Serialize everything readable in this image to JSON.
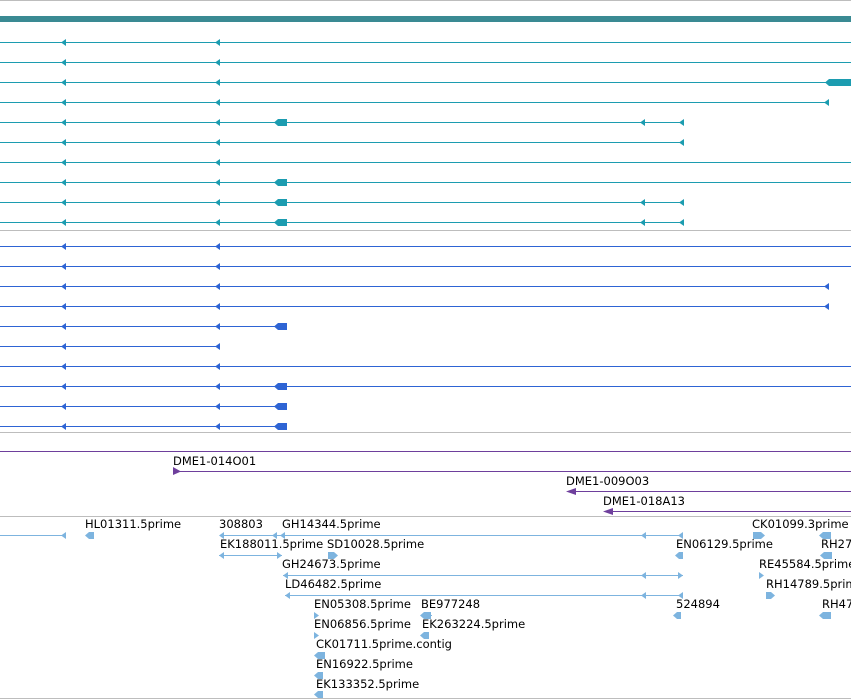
{
  "colors": {
    "gene_bar": "#3a8a93",
    "transcripts_a": "#1c9cb0",
    "transcripts_b": "#2e64d4",
    "purple": "#6e3f9c",
    "est": "#7db4df",
    "divider": "#bdbdbd",
    "label": "#000000"
  },
  "purple_features": [
    {
      "name": "DME1-014O01"
    },
    {
      "name": "DME1-009O03"
    },
    {
      "name": "DME1-018A13"
    }
  ],
  "est_labels": {
    "hl01311": "HL01311.5prime",
    "n308803": "308803",
    "gh14344": "GH14344.5prime",
    "ck01099": "CK01099.3prime",
    "ek188011": "EK188011.5prime",
    "sd10028": "SD10028.5prime",
    "en06129": "EN06129.5prime",
    "rh27": "RH27",
    "gh24673": "GH24673.5prime",
    "re45584": "RE45584.5prime",
    "ld46482": "LD46482.5prime",
    "rh14789": "RH14789.5prim",
    "en05308": "EN05308.5prime",
    "be977248": "BE977248",
    "n524894": "524894",
    "rh47": "RH47",
    "en06856": "EN06856.5prime",
    "ek263224": "EK263224.5prime",
    "ck01711": "CK01711.5prime.contig",
    "en16922": "EN16922.5prime",
    "ek133352": "EK133352.5prime"
  }
}
